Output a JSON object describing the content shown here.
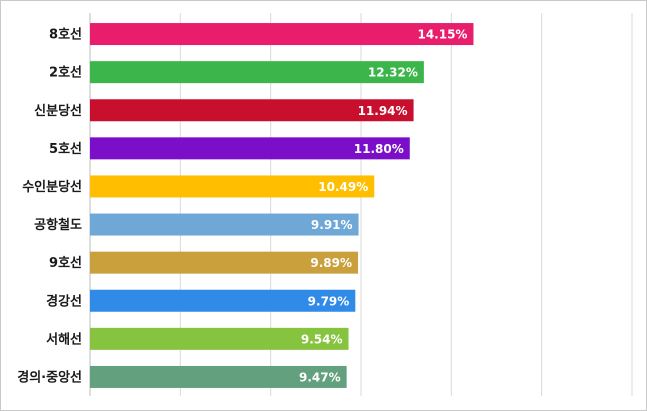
{
  "chart_data": {
    "type": "bar",
    "orientation": "horizontal",
    "categories": [
      "8호선",
      "2호선",
      "신분당선",
      "5호선",
      "수인분당선",
      "공항철도",
      "9호선",
      "경강선",
      "서해선",
      "경의·중앙선"
    ],
    "values": [
      14.15,
      12.32,
      11.94,
      11.8,
      10.49,
      9.91,
      9.89,
      9.79,
      9.54,
      9.47
    ],
    "value_labels": [
      "14.15%",
      "12.32%",
      "11.94%",
      "11.80%",
      "10.49%",
      "9.91%",
      "9.89%",
      "9.79%",
      "9.54%",
      "9.47%"
    ],
    "colors": [
      "#e81e6d",
      "#3cb54a",
      "#c8102e",
      "#7b0fc9",
      "#ffbf00",
      "#6fa8d6",
      "#c9a03c",
      "#2f8ae8",
      "#86c440",
      "#62a07e"
    ],
    "xlim": [
      0,
      20
    ],
    "grid": true,
    "title": "",
    "xlabel": "",
    "ylabel": ""
  }
}
